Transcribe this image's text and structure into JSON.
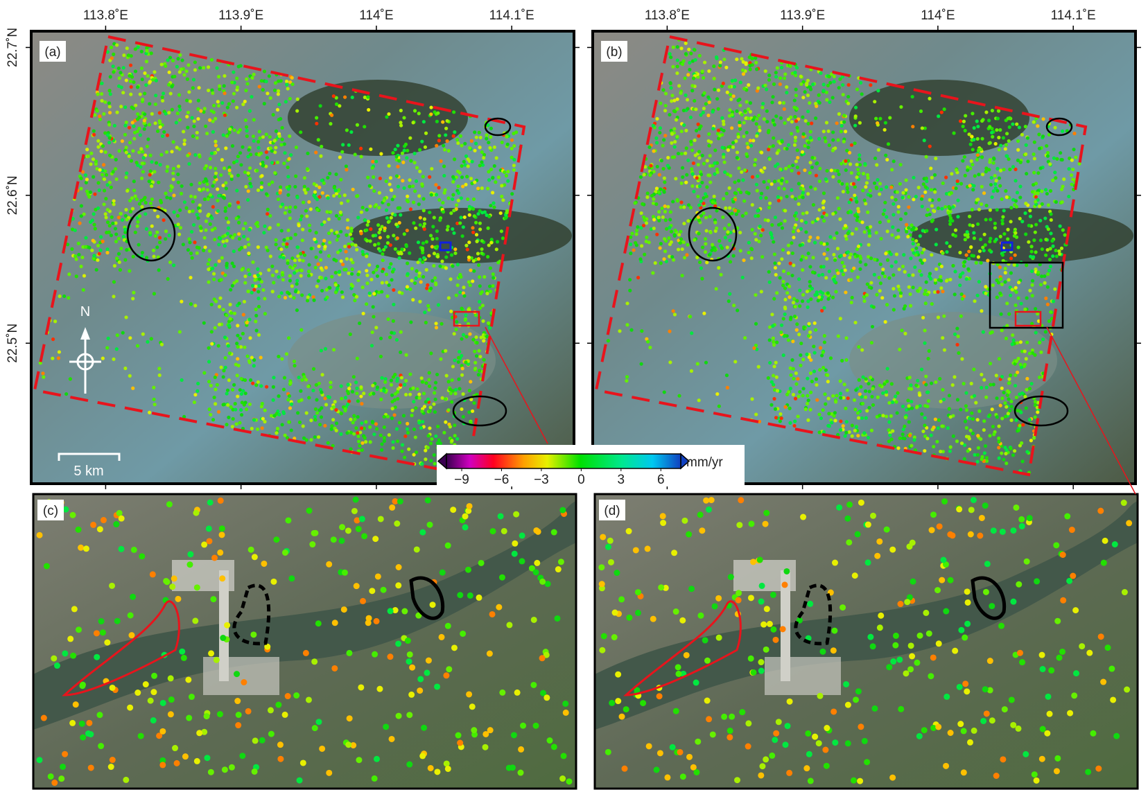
{
  "panels": [
    {
      "label": "(a)"
    },
    {
      "label": "(b)"
    },
    {
      "label": "(c)"
    },
    {
      "label": "(d)"
    }
  ],
  "map": {
    "xlim": [
      113.745,
      114.146
    ],
    "ylim": [
      22.405,
      22.711
    ],
    "xticks": [
      {
        "value": 113.8,
        "label": "113.8˚E"
      },
      {
        "value": 113.9,
        "label": "113.9˚E"
      },
      {
        "value": 114,
        "label": "114˚E"
      },
      {
        "value": 114.1,
        "label": "114.1˚E"
      }
    ],
    "yticks": [
      {
        "value": 22.7,
        "label": "22.7˚N"
      },
      {
        "value": 22.6,
        "label": "22.6˚N"
      },
      {
        "value": 22.5,
        "label": "22.5˚N"
      }
    ]
  },
  "north": "N",
  "scale_bar": "5 km",
  "colorbar": {
    "unit": "mm/yr",
    "lim": [
      -10.15,
      7.5
    ],
    "ticks": [
      {
        "value": -9,
        "label": "−9"
      },
      {
        "value": -6,
        "label": "−6"
      },
      {
        "value": -3,
        "label": "−3"
      },
      0,
      3,
      6
    ]
  }
}
